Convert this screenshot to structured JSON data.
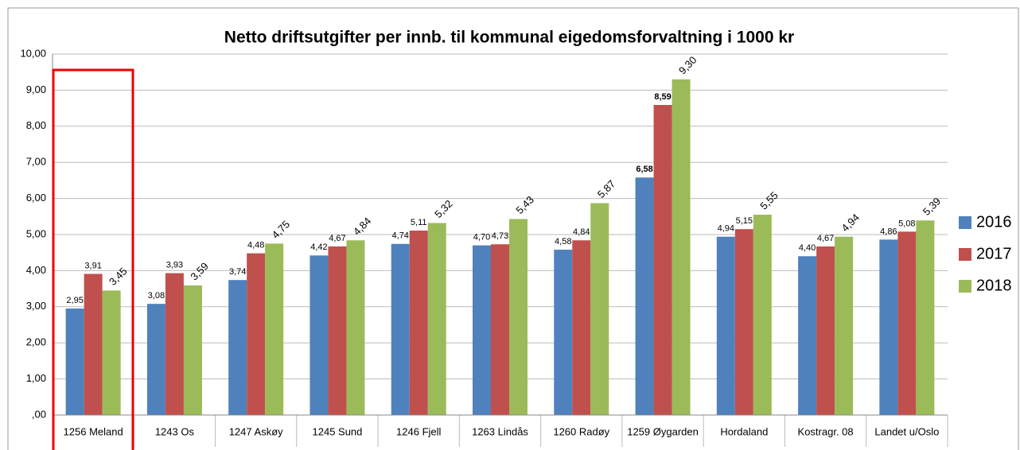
{
  "chart_data": {
    "type": "bar",
    "title": "Netto driftsutgifter per innb. til kommunal eigedomsforvaltning i 1000 kr",
    "categories": [
      "1256 Meland",
      "1243 Os",
      "1247 Askøy",
      "1245 Sund",
      "1246 Fjell",
      "1263 Lindås",
      "1260 Radøy",
      "1259 Øygarden",
      "Hordaland",
      "Kostragr. 08",
      "Landet u/Oslo"
    ],
    "series": [
      {
        "name": "2016",
        "color": "#4f81bd",
        "values": [
          2.95,
          3.08,
          3.74,
          4.42,
          4.74,
          4.7,
          4.58,
          6.58,
          4.94,
          4.4,
          4.86
        ],
        "value_labels": [
          "2,95",
          "3,08",
          "3,74",
          "4,42",
          "4,74",
          "4,70",
          "4,58",
          "6,58",
          "4,94",
          "4,40",
          "4,86"
        ]
      },
      {
        "name": "2017",
        "color": "#c0504d",
        "values": [
          3.91,
          3.93,
          4.48,
          4.67,
          5.11,
          4.73,
          4.84,
          8.59,
          5.15,
          4.67,
          5.08
        ],
        "value_labels": [
          "3,91",
          "3,93",
          "4,48",
          "4,67",
          "5,11",
          "4,73",
          "4,84",
          "8,59",
          "5,15",
          "4,67",
          "5,08"
        ]
      },
      {
        "name": "2018",
        "color": "#9bbb59",
        "values": [
          3.45,
          3.59,
          4.75,
          4.84,
          5.32,
          5.43,
          5.87,
          9.3,
          5.55,
          4.94,
          5.39
        ],
        "value_labels": [
          "3,45",
          "3,59",
          "4,75",
          "4,84",
          "5,32",
          "5,43",
          "5,87",
          "9,30",
          "5,55",
          "4,94",
          "5,39"
        ]
      }
    ],
    "ylim": [
      0,
      10
    ],
    "yticks": [
      {
        "value": 0,
        "label": ",00"
      },
      {
        "value": 1,
        "label": "1,00"
      },
      {
        "value": 2,
        "label": "2,00"
      },
      {
        "value": 3,
        "label": "3,00"
      },
      {
        "value": 4,
        "label": "4,00"
      },
      {
        "value": 5,
        "label": "5,00"
      },
      {
        "value": 6,
        "label": "6,00"
      },
      {
        "value": 7,
        "label": "7,00"
      },
      {
        "value": 8,
        "label": "8,00"
      },
      {
        "value": 9,
        "label": "9,00"
      },
      {
        "value": 10,
        "label": "10,00"
      }
    ],
    "grid": true,
    "legend": "right"
  }
}
